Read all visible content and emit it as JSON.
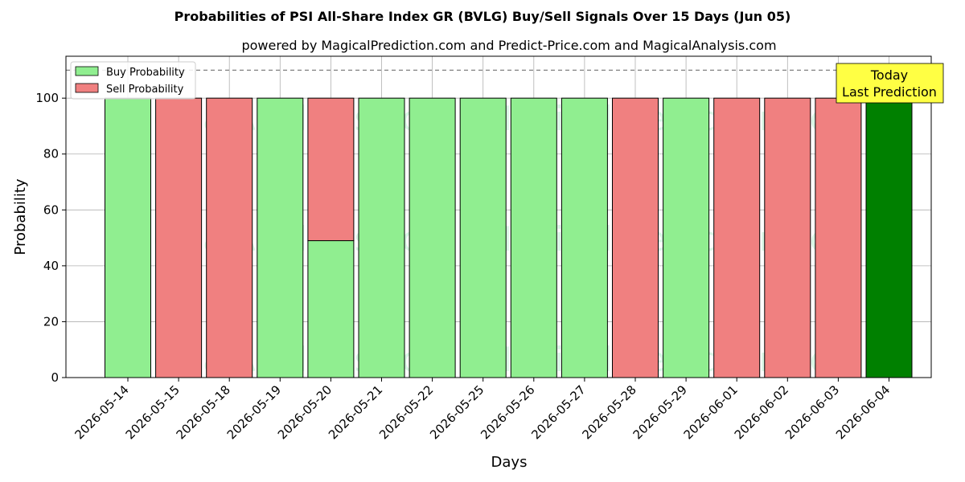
{
  "chart_data": {
    "type": "bar",
    "stacked": true,
    "title": "Probabilities of PSI All-Share Index GR (BVLG) Buy/Sell Signals Over 15 Days (Jun 05)",
    "subtitle": "powered by MagicalPrediction.com and Predict-Price.com and MagicalAnalysis.com",
    "xlabel": "Days",
    "ylabel": "Probability",
    "ylim": [
      0,
      115
    ],
    "yticks": [
      0,
      20,
      40,
      60,
      80,
      100
    ],
    "grid": true,
    "legend_placement": "top-left",
    "categories": [
      "2026-05-14",
      "2026-05-15",
      "2026-05-18",
      "2026-05-19",
      "2026-05-20",
      "2026-05-21",
      "2026-05-22",
      "2026-05-25",
      "2026-05-26",
      "2026-05-27",
      "2026-05-28",
      "2026-05-29",
      "2026-06-01",
      "2026-06-02",
      "2026-06-03",
      "2026-06-04"
    ],
    "series": [
      {
        "name": "Buy Probability",
        "color": "#90ee90",
        "values": [
          100,
          0,
          0,
          100,
          49,
          100,
          100,
          100,
          100,
          100,
          0,
          100,
          0,
          0,
          0,
          100
        ]
      },
      {
        "name": "Sell Probability",
        "color": "#f08080",
        "values": [
          0,
          100,
          100,
          0,
          51,
          0,
          0,
          0,
          0,
          0,
          100,
          0,
          100,
          100,
          100,
          0
        ]
      }
    ],
    "highlight": {
      "index": 15,
      "color": "#008000"
    },
    "reference_line": {
      "y": 110,
      "style": "dashed",
      "color": "#808080"
    },
    "annotation": {
      "lines": [
        "Today",
        "Last Prediction"
      ],
      "background": "#ffff44"
    },
    "watermarks": [
      "MagicalAnalysis.com",
      "MagicalPrediction.com"
    ]
  }
}
